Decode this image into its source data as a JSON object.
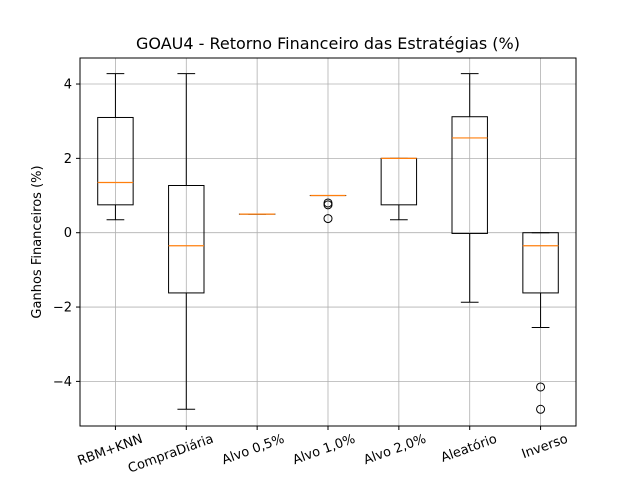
{
  "chart_data": {
    "type": "box",
    "title": "GOAU4 - Retorno Financeiro das Estratégias (%)",
    "xlabel": "",
    "ylabel": "Ganhos Financeiros (%)",
    "ylim": [
      -5.2,
      4.7
    ],
    "yticks": [
      -4,
      -2,
      0,
      2,
      4
    ],
    "grid": true,
    "categories": [
      "RBM+KNN",
      "CompraDiária",
      "Alvo 0,5%",
      "Alvo 1,0%",
      "Alvo 2,0%",
      "Aleatório",
      "Inverso"
    ],
    "series": [
      {
        "whisker_low": 0.35,
        "q1": 0.75,
        "median": 1.35,
        "q3": 3.1,
        "whisker_high": 4.28,
        "outliers": []
      },
      {
        "whisker_low": -4.75,
        "q1": -1.62,
        "median": -0.35,
        "q3": 1.27,
        "whisker_high": 4.28,
        "outliers": []
      },
      {
        "whisker_low": 0.5,
        "q1": 0.5,
        "median": 0.5,
        "q3": 0.5,
        "whisker_high": 0.5,
        "outliers": []
      },
      {
        "whisker_low": 1.0,
        "q1": 1.0,
        "median": 1.0,
        "q3": 1.0,
        "whisker_high": 1.0,
        "outliers": [
          0.8,
          0.75,
          0.38
        ]
      },
      {
        "whisker_low": 0.35,
        "q1": 0.75,
        "median": 2.0,
        "q3": 2.0,
        "whisker_high": 2.0,
        "outliers": []
      },
      {
        "whisker_low": -1.87,
        "q1": -0.02,
        "median": 2.55,
        "q3": 3.12,
        "whisker_high": 4.28,
        "outliers": []
      },
      {
        "whisker_low": -2.55,
        "q1": -1.62,
        "median": -0.35,
        "q3": 0.0,
        "whisker_high": 0.0,
        "outliers": [
          -4.15,
          -4.75
        ]
      }
    ],
    "colors": {
      "box": "#000000",
      "median": "#ff7f0e",
      "grid": "#b0b0b0"
    }
  }
}
